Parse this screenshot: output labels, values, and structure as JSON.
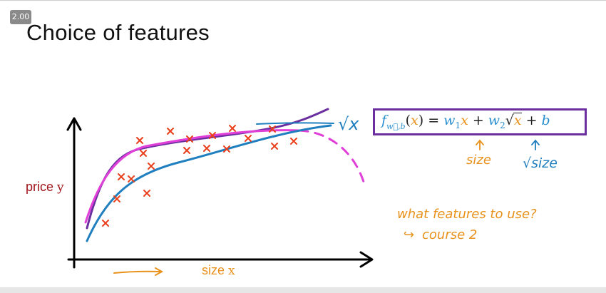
{
  "player": {
    "speed": "2.00"
  },
  "slide": {
    "title": "Choice of features",
    "y_axis_label": "price",
    "y_axis_var": "y",
    "x_axis_label": "size",
    "x_axis_var": "x",
    "formula": {
      "f": "f",
      "f_sub": "w⃗,b",
      "paren_open": "(",
      "x": "x",
      "paren_close": ")",
      "eq": " = ",
      "w1": "w",
      "w1_sub": "1",
      "x2": "x",
      "plus1": " + ",
      "w2": "w",
      "w2_sub": "2",
      "sqrt_sign": "√",
      "x3": "x",
      "plus2": " + ",
      "b": "b"
    },
    "annotations": {
      "size": "size",
      "sqrt_size": "√size",
      "question": "what features to use?",
      "course": "course 2",
      "hook_arrow": "↪",
      "root_x": "√x"
    }
  },
  "colors": {
    "data_points": "#e8401c",
    "purple_curve": "#6b2fa0",
    "magenta_curve": "#e03fd8",
    "blue_curve": "#1f7fbf",
    "annotation_orange": "#e8921c",
    "label_red": "#a0161c"
  },
  "chart_data": {
    "type": "scatter",
    "title": "",
    "xlabel": "size x",
    "ylabel": "price y",
    "points": [
      [
        1.3,
        1.2
      ],
      [
        1.8,
        2.3
      ],
      [
        2.0,
        2.7
      ],
      [
        2.2,
        3.8
      ],
      [
        2.5,
        3.3
      ],
      [
        2.8,
        2.0
      ],
      [
        2.9,
        3.0
      ],
      [
        3.0,
        3.8
      ],
      [
        3.4,
        4.4
      ],
      [
        3.8,
        4.0
      ],
      [
        4.0,
        4.2
      ],
      [
        4.1,
        3.7
      ],
      [
        4.5,
        4.3
      ],
      [
        4.8,
        3.8
      ],
      [
        5.0,
        4.4
      ],
      [
        5.4,
        3.9
      ],
      [
        6.0,
        4.1
      ],
      [
        6.5,
        4.0
      ],
      [
        6.6,
        4.5
      ],
      [
        7.1,
        4.1
      ]
    ],
    "curves": [
      {
        "name": "purple",
        "style": "solid"
      },
      {
        "name": "magenta",
        "style": "solid then dashed"
      },
      {
        "name": "blue",
        "style": "solid"
      }
    ]
  }
}
